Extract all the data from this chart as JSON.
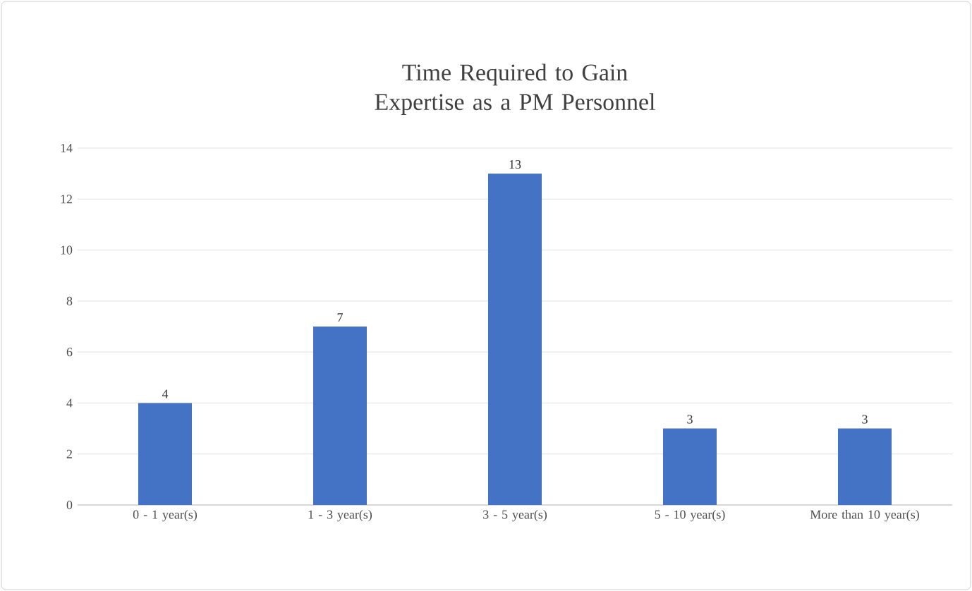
{
  "chart_data": {
    "type": "bar",
    "title": "Time Required to Gain Expertise as a PM Personnel",
    "categories": [
      "0 - 1 year(s)",
      "1 - 3 year(s)",
      "3 - 5 year(s)",
      "5 - 10 year(s)",
      "More than 10 year(s)"
    ],
    "values": [
      4,
      7,
      13,
      3,
      3
    ],
    "color": "#4472c4",
    "ylim": [
      0,
      14
    ],
    "yticks": [
      0,
      2,
      4,
      6,
      8,
      10,
      12,
      14
    ],
    "grid": "y",
    "data_labels": true
  }
}
